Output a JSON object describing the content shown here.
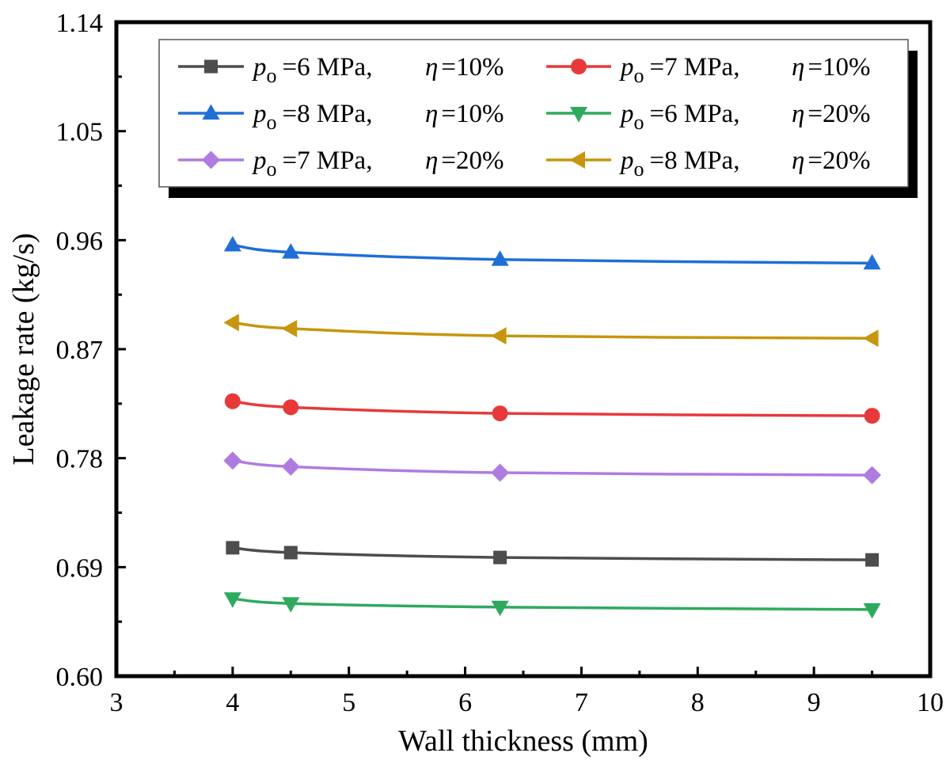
{
  "chart_data": {
    "type": "line",
    "title": "",
    "xlabel": "Wall thickness (mm)",
    "ylabel": "Leakage rate (kg/s)",
    "xlim": [
      3,
      10
    ],
    "ylim": [
      0.6,
      1.14
    ],
    "xticks": [
      3,
      4,
      5,
      6,
      7,
      8,
      9,
      10
    ],
    "xtick_labels": [
      "3",
      "4",
      "5",
      "6",
      "7",
      "8",
      "9",
      "10"
    ],
    "yticks": [
      0.6,
      0.69,
      0.78,
      0.87,
      0.96,
      1.05,
      1.14
    ],
    "ytick_labels": [
      "0.60",
      "0.69",
      "0.78",
      "0.87",
      "0.96",
      "1.05",
      "1.14"
    ],
    "grid": false,
    "legend_position": "top",
    "legend_parts": {
      "p_symbol": "p",
      "p_subscript": "o",
      "eta_symbol": "η"
    },
    "x": [
      4,
      4.5,
      6.3,
      9.5
    ],
    "series": [
      {
        "name": "po=6 MPa, η=10%",
        "pressure_text": "=6 MPa,",
        "eta_text": "=10%",
        "color": "#4d4d4d",
        "marker": "square",
        "values": [
          0.706,
          0.702,
          0.698,
          0.696
        ]
      },
      {
        "name": "po=7 MPa, η=10%",
        "pressure_text": "=7 MPa,",
        "eta_text": "=10%",
        "color": "#e8393a",
        "marker": "circle",
        "values": [
          0.827,
          0.822,
          0.817,
          0.815
        ]
      },
      {
        "name": "po=8 MPa, η=10%",
        "pressure_text": "=8 MPa,",
        "eta_text": "=10%",
        "color": "#1f6fd6",
        "marker": "triangle-up",
        "values": [
          0.956,
          0.95,
          0.944,
          0.941
        ]
      },
      {
        "name": "po=6 MPa, η=20%",
        "pressure_text": "=6 MPa,",
        "eta_text": "=20%",
        "color": "#2eaa5e",
        "marker": "triangle-down",
        "values": [
          0.664,
          0.66,
          0.657,
          0.655
        ]
      },
      {
        "name": "po=7 MPa, η=20%",
        "pressure_text": "=7 MPa,",
        "eta_text": "=20%",
        "color": "#b07be0",
        "marker": "diamond",
        "values": [
          0.778,
          0.773,
          0.768,
          0.766
        ]
      },
      {
        "name": "po=8 MPa, η=20%",
        "pressure_text": "=8 MPa,",
        "eta_text": "=20%",
        "color": "#c7960c",
        "marker": "triangle-left",
        "values": [
          0.892,
          0.887,
          0.881,
          0.879
        ]
      }
    ]
  }
}
